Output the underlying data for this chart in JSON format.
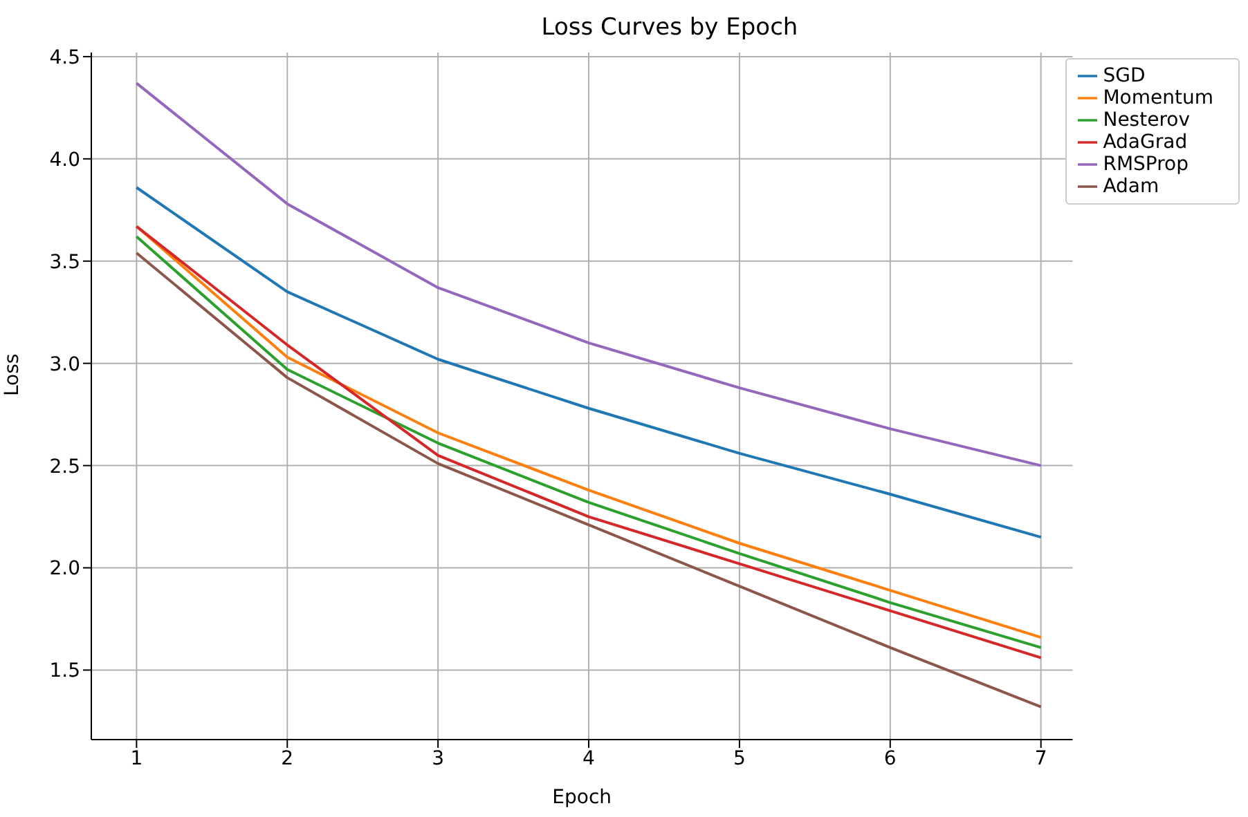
{
  "chart_data": {
    "type": "line",
    "title": "Loss Curves by Epoch",
    "xlabel": "Epoch",
    "ylabel": "Loss",
    "x": [
      1,
      2,
      3,
      4,
      5,
      6,
      7
    ],
    "series": [
      {
        "name": "SGD",
        "color": "#1f77b4",
        "values": [
          3.86,
          3.35,
          3.02,
          2.78,
          2.56,
          2.36,
          2.15
        ]
      },
      {
        "name": "Momentum",
        "color": "#ff7f0e",
        "values": [
          3.67,
          3.03,
          2.66,
          2.38,
          2.12,
          1.89,
          1.66
        ]
      },
      {
        "name": "Nesterov",
        "color": "#2ca02c",
        "values": [
          3.62,
          2.97,
          2.61,
          2.32,
          2.07,
          1.83,
          1.61
        ]
      },
      {
        "name": "AdaGrad",
        "color": "#d62728",
        "values": [
          3.67,
          3.09,
          2.55,
          2.25,
          2.02,
          1.79,
          1.56
        ]
      },
      {
        "name": "RMSProp",
        "color": "#9467bd",
        "values": [
          4.37,
          3.78,
          3.37,
          3.1,
          2.88,
          2.68,
          2.5
        ]
      },
      {
        "name": "Adam",
        "color": "#8c564b",
        "values": [
          3.54,
          2.93,
          2.51,
          2.21,
          1.91,
          1.61,
          1.32
        ]
      }
    ],
    "xlim": [
      0.7,
      7.21
    ],
    "xticks": [
      1,
      2,
      3,
      4,
      5,
      6,
      7
    ],
    "ylim": [
      1.16,
      4.52
    ],
    "yticks": [
      1.5,
      {
        "value": 2,
        "label": "2.0"
      },
      2.5,
      {
        "value": 3,
        "label": "3.0"
      },
      3.5,
      {
        "value": 4,
        "label": "4.0"
      },
      4.5
    ],
    "grid": true,
    "legend": "top right",
    "marker": "none",
    "line_style": "solid"
  }
}
